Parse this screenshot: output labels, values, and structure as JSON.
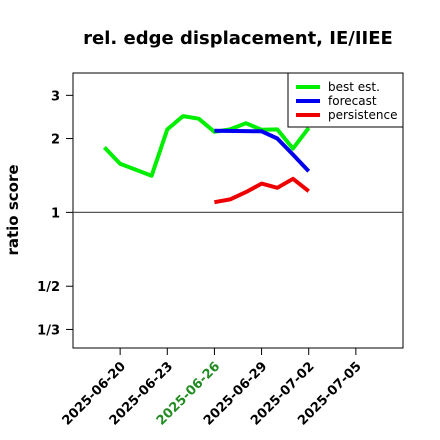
{
  "chart_data": {
    "type": "line",
    "title": "rel. edge displacement, IE/IIEE",
    "xlabel": "",
    "ylabel": "ratio score",
    "y_scale": "log",
    "ylim": [
      0.28,
      3.7
    ],
    "xlim": [
      "2025-06-17",
      "2025-07-08"
    ],
    "yticks": [
      {
        "value": 0.3333,
        "label": "1/3"
      },
      {
        "value": 0.5,
        "label": "1/2"
      },
      {
        "value": 1,
        "label": "1"
      },
      {
        "value": 2,
        "label": "2"
      },
      {
        "value": 3,
        "label": "3"
      }
    ],
    "xticks": [
      {
        "date": "2025-06-20",
        "label": "2025-06-20",
        "color": "#000000"
      },
      {
        "date": "2025-06-23",
        "label": "2025-06-23",
        "color": "#000000"
      },
      {
        "date": "2025-06-26",
        "label": "2025-06-26",
        "color": "#228b22"
      },
      {
        "date": "2025-06-29",
        "label": "2025-06-29",
        "color": "#000000"
      },
      {
        "date": "2025-07-02",
        "label": "2025-07-02",
        "color": "#000000"
      },
      {
        "date": "2025-07-05",
        "label": "2025-07-05",
        "color": "#000000"
      }
    ],
    "reference_line": 1,
    "grid": false,
    "legend_position": "top-right",
    "series": [
      {
        "name": "best est.",
        "color": "#00ee00",
        "points": [
          [
            "2025-06-19",
            1.84
          ],
          [
            "2025-06-20",
            1.58
          ],
          [
            "2025-06-22",
            1.41
          ],
          [
            "2025-06-23",
            2.18
          ],
          [
            "2025-06-24",
            2.47
          ],
          [
            "2025-06-25",
            2.41
          ],
          [
            "2025-06-26",
            2.13
          ],
          [
            "2025-06-27",
            2.18
          ],
          [
            "2025-06-28",
            2.31
          ],
          [
            "2025-06-29",
            2.17
          ],
          [
            "2025-06-30",
            2.18
          ],
          [
            "2025-07-01",
            1.82
          ],
          [
            "2025-07-02",
            2.21
          ]
        ]
      },
      {
        "name": "forecast",
        "color": "#0000ee",
        "points": [
          [
            "2025-06-26",
            2.15
          ],
          [
            "2025-06-29",
            2.14
          ],
          [
            "2025-06-30",
            2.0
          ],
          [
            "2025-07-01",
            1.72
          ],
          [
            "2025-07-02",
            1.47
          ]
        ]
      },
      {
        "name": "persistence",
        "color": "#ee0000",
        "points": [
          [
            "2025-06-26",
            1.1
          ],
          [
            "2025-06-27",
            1.13
          ],
          [
            "2025-06-28",
            1.21
          ],
          [
            "2025-06-29",
            1.31
          ],
          [
            "2025-06-30",
            1.26
          ],
          [
            "2025-07-01",
            1.37
          ],
          [
            "2025-07-02",
            1.22
          ]
        ]
      }
    ]
  }
}
